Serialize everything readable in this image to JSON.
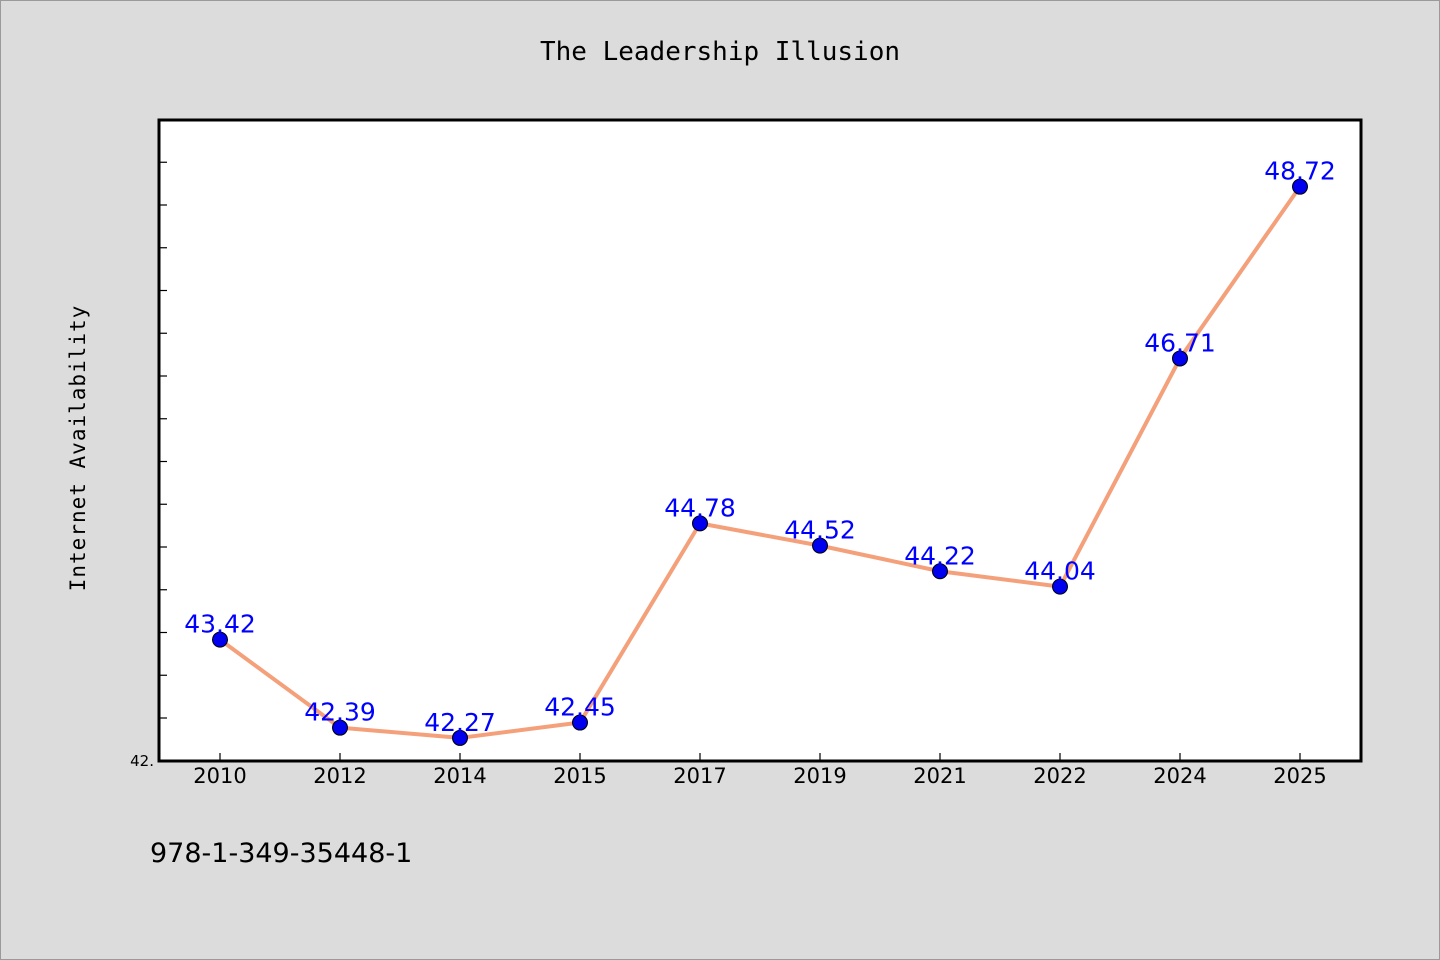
{
  "chart_data": {
    "type": "line",
    "title": "The Leadership Illusion",
    "xlabel": "",
    "ylabel": "Internet Availability",
    "categories": [
      "2010",
      "2012",
      "2014",
      "2015",
      "2017",
      "2019",
      "2021",
      "2022",
      "2024",
      "2025"
    ],
    "series": [
      {
        "values": [
          43.42,
          42.39,
          42.27,
          42.45,
          44.78,
          44.52,
          44.22,
          44.04,
          46.71,
          48.72
        ],
        "labels": [
          "43.42",
          "42.39",
          "42.27",
          "42.45",
          "44.78",
          "44.52",
          "44.22",
          "44.04",
          "46.71",
          "48.72"
        ],
        "line_color": "#f4a07a",
        "marker_color": "#0000ee"
      }
    ],
    "ylim": [
      42.0,
      49.5
    ],
    "ytick_label": "42.",
    "label_color": "#0000ff",
    "grid": false,
    "legend": "none"
  },
  "footer": {
    "text": "978-1-349-35448-1"
  }
}
